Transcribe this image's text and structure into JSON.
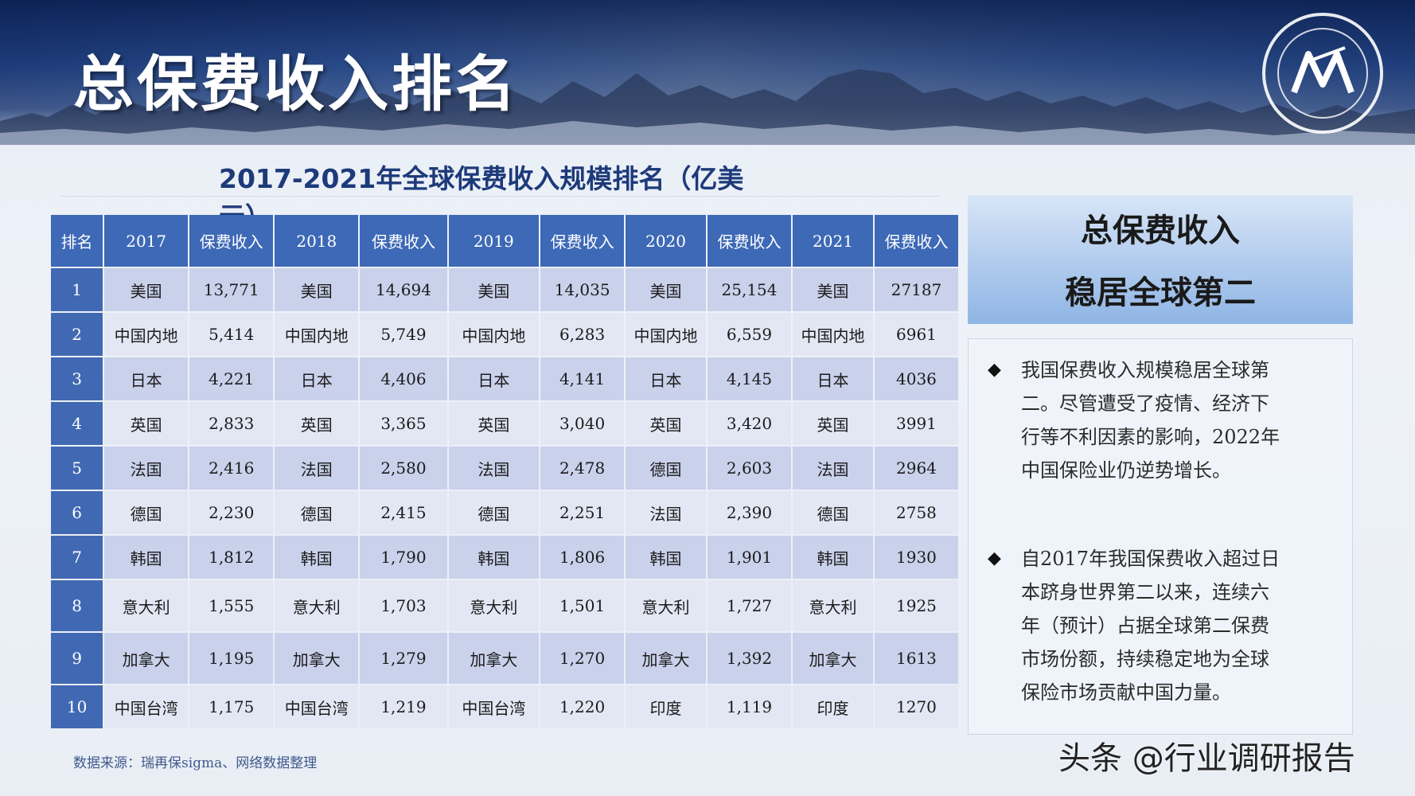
{
  "header": {
    "title": "总保费收入排名"
  },
  "table": {
    "title": "2017-2021年全球保费收入规模排名（亿美元）",
    "headers": [
      "排名",
      "2017",
      "保费收入",
      "2018",
      "保费收入",
      "2019",
      "保费收入",
      "2020",
      "保费收入",
      "2021",
      "保费收入"
    ],
    "rows": [
      [
        "1",
        "美国",
        "13,771",
        "美国",
        "14,694",
        "美国",
        "14,035",
        "美国",
        "25,154",
        "美国",
        "27187"
      ],
      [
        "2",
        "中国内地",
        "5,414",
        "中国内地",
        "5,749",
        "中国内地",
        "6,283",
        "中国内地",
        "6,559",
        "中国内地",
        "6961"
      ],
      [
        "3",
        "日本",
        "4,221",
        "日本",
        "4,406",
        "日本",
        "4,141",
        "日本",
        "4,145",
        "日本",
        "4036"
      ],
      [
        "4",
        "英国",
        "2,833",
        "英国",
        "3,365",
        "英国",
        "3,040",
        "英国",
        "3,420",
        "英国",
        "3991"
      ],
      [
        "5",
        "法国",
        "2,416",
        "法国",
        "2,580",
        "法国",
        "2,478",
        "德国",
        "2,603",
        "法国",
        "2964"
      ],
      [
        "6",
        "德国",
        "2,230",
        "德国",
        "2,415",
        "德国",
        "2,251",
        "法国",
        "2,390",
        "德国",
        "2758"
      ],
      [
        "7",
        "韩国",
        "1,812",
        "韩国",
        "1,790",
        "韩国",
        "1,806",
        "韩国",
        "1,901",
        "韩国",
        "1930"
      ],
      [
        "8",
        "意大利",
        "1,555",
        "意大利",
        "1,703",
        "意大利",
        "1,501",
        "意大利",
        "1,727",
        "意大利",
        "1925"
      ],
      [
        "9",
        "加拿大",
        "1,195",
        "加拿大",
        "1,279",
        "加拿大",
        "1,270",
        "加拿大",
        "1,392",
        "加拿大",
        "1613"
      ],
      [
        "10",
        "中国台湾",
        "1,175",
        "中国台湾",
        "1,219",
        "中国台湾",
        "1,220",
        "印度",
        "1,119",
        "印度",
        "1270"
      ]
    ],
    "source": "数据来源：瑞再保sigma、网络数据整理"
  },
  "headline": {
    "line1": "总保费收入",
    "line2": "稳居全球第二"
  },
  "bullets": [
    {
      "mark": "◆",
      "lines": [
        "我国保费收入规模稳居全球第",
        "二。尽管遭受了疫情、经济下",
        "行等不利因素的影响，2022年",
        "中国保险业仍逆势增长。"
      ]
    },
    {
      "mark": "◆",
      "lines": [
        "自2017年我国保费收入超过日",
        "本跻身世界第二以来，连续六",
        "年（预计）占据全球第二保费",
        "市场份额，持续稳定地为全球",
        "保险市场贡献中国力量。"
      ]
    }
  ],
  "watermark": "头条 @行业调研报告",
  "colors": {
    "header_cell": "#3d69b6",
    "row_dark": "#c9d1eb",
    "row_light": "#e3e7f4",
    "headline_gradient_bottom": "#8fb5e5"
  }
}
